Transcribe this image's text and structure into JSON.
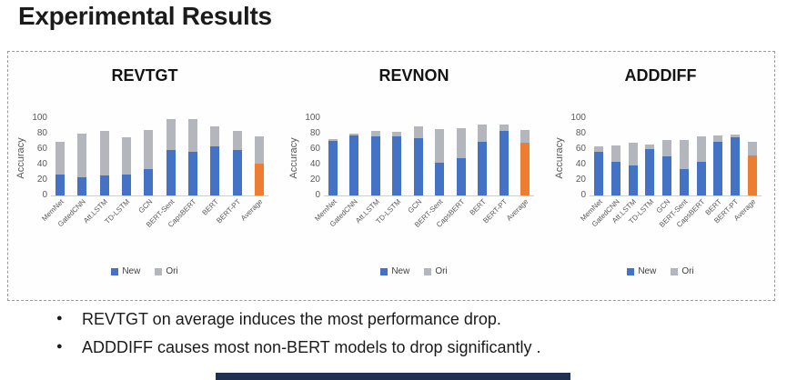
{
  "title": "Experimental Results",
  "bullets": [
    "REVTGT on average induces the most performance drop.",
    "ADDDIFF causes most non-BERT models to drop significantly ."
  ],
  "colors": {
    "new_bar": "#4472C4",
    "ori_bar": "#b3b7bd",
    "average_bar": "#ED7D31",
    "axis_text": "#595959",
    "bottom_bar": "#1f3050"
  },
  "chart_data": [
    {
      "type": "bar",
      "stacked": true,
      "ori_values_are_totals": true,
      "title": "REVTGT",
      "ylabel": "Accuracy",
      "ylim": [
        0,
        100
      ],
      "yticks": [
        0,
        20,
        40,
        60,
        80,
        100
      ],
      "grid": false,
      "legend_position": "bottom",
      "legend": [
        "New",
        "Ori"
      ],
      "categories": [
        "MemNet",
        "GatedCNN",
        "Att.LSTM",
        "TD-LSTM",
        "GCN",
        "BERT-Sent",
        "CapsBERT",
        "BERT",
        "BERT-PT",
        "Average"
      ],
      "series": [
        {
          "name": "New",
          "values": [
            27,
            23,
            26,
            27,
            34,
            59,
            57,
            63,
            59,
            41
          ]
        },
        {
          "name": "Ori",
          "values": [
            70,
            80,
            83,
            75,
            85,
            100,
            100,
            89,
            84,
            76
          ]
        }
      ]
    },
    {
      "type": "bar",
      "stacked": true,
      "ori_values_are_totals": true,
      "title": "REVNON",
      "ylabel": "Accuracy",
      "ylim": [
        0,
        100
      ],
      "yticks": [
        0,
        20,
        40,
        60,
        80,
        100
      ],
      "grid": false,
      "legend_position": "bottom",
      "legend": [
        "New",
        "Ori"
      ],
      "categories": [
        "MemNet",
        "GatedCNN",
        "Att.LSTM",
        "TD-LSTM",
        "GCN",
        "BERT-Sent",
        "CapsBERT",
        "BERT",
        "BERT-PT",
        "Average"
      ],
      "series": [
        {
          "name": "New",
          "values": [
            71,
            78,
            76,
            77,
            74,
            42,
            48,
            70,
            84,
            68
          ]
        },
        {
          "name": "Ori",
          "values": [
            73,
            80,
            84,
            82,
            89,
            86,
            87,
            92,
            92,
            85
          ]
        }
      ]
    },
    {
      "type": "bar",
      "stacked": true,
      "ori_values_are_totals": true,
      "title": "ADDDIFF",
      "ylabel": "Accuracy",
      "ylim": [
        0,
        100
      ],
      "yticks": [
        0,
        20,
        40,
        60,
        80,
        100
      ],
      "grid": false,
      "legend_position": "bottom",
      "legend": [
        "New",
        "Ori"
      ],
      "categories": [
        "MemNet",
        "GatedCNN",
        "Att.LSTM",
        "TD-LSTM",
        "GCN",
        "BERT-Sent",
        "CapsBERT",
        "BERT",
        "BERT-PT",
        "Average"
      ],
      "series": [
        {
          "name": "New",
          "values": [
            57,
            44,
            39,
            60,
            51,
            34,
            44,
            70,
            75,
            52
          ]
        },
        {
          "name": "Ori",
          "values": [
            64,
            65,
            68,
            66,
            72,
            72,
            76,
            78,
            79,
            70
          ]
        }
      ]
    }
  ]
}
